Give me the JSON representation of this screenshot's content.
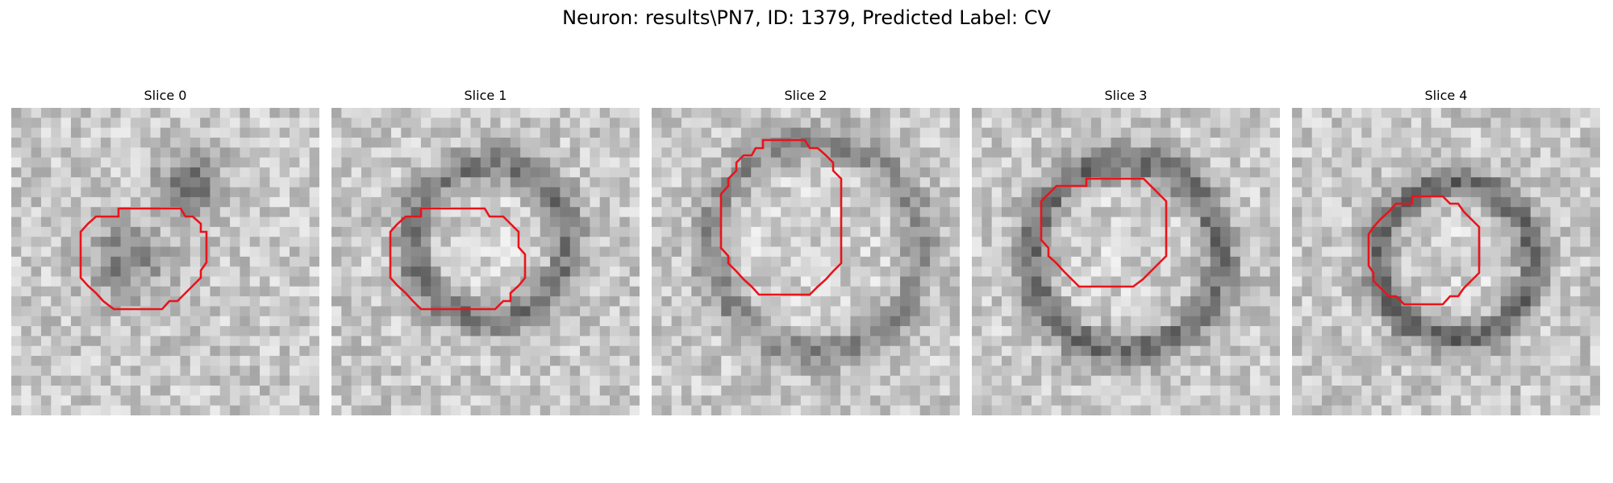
{
  "figure": {
    "title": "Neuron: results\\PN7, ID: 1379, Predicted Label: CV",
    "accent_color": "#e8141c"
  },
  "slices": [
    {
      "title": "Slice 0",
      "structure": "diffuse"
    },
    {
      "title": "Slice 1",
      "structure": "ring"
    },
    {
      "title": "Slice 2",
      "structure": "ring"
    },
    {
      "title": "Slice 3",
      "structure": "ring"
    },
    {
      "title": "Slice 4",
      "structure": "ring"
    }
  ]
}
